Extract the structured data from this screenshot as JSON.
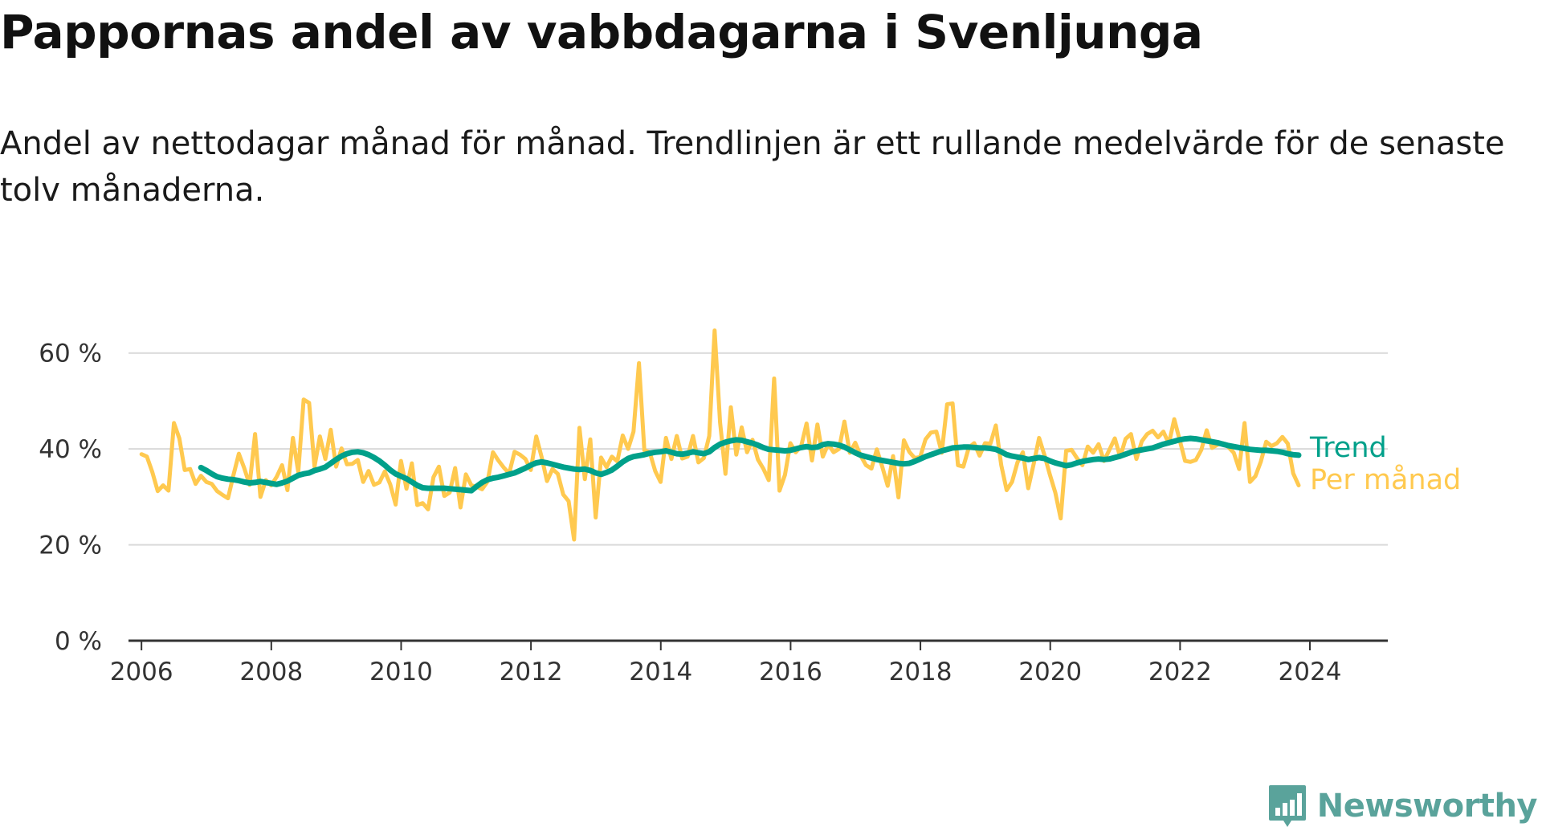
{
  "title": "Pappornas andel av vabbdagarna i Svenljunga",
  "subtitle": "Andel av nettodagar månad för månad. Trendlinjen är ett rullande medelvärde för de senaste tolv månaderna.",
  "logo": {
    "text": "Newsworthy",
    "icon": "bar-chart-speech-bubble-icon",
    "color": "#5aa39b"
  },
  "colors": {
    "trend": "#00a08a",
    "monthly": "#ffc94f",
    "grid": "#d9d9d9",
    "axis": "#333333"
  },
  "chart_data": {
    "type": "line",
    "title": "Pappornas andel av vabbdagarna i Svenljunga",
    "xlabel": "",
    "ylabel": "",
    "xlim": [
      2005.8,
      2025.2
    ],
    "ylim": [
      0,
      70
    ],
    "x_ticks": [
      2006,
      2008,
      2010,
      2012,
      2014,
      2016,
      2018,
      2020,
      2022,
      2024
    ],
    "x_tick_labels": [
      "2006",
      "2008",
      "2010",
      "2012",
      "2014",
      "2016",
      "2018",
      "2020",
      "2022",
      "2024"
    ],
    "y_ticks": [
      0,
      20,
      40,
      60
    ],
    "y_tick_labels": [
      "0 %",
      "20 %",
      "40 %",
      "60 %"
    ],
    "grid": true,
    "x_start": 2006.0,
    "x_step": 0.0833,
    "series": [
      {
        "name": "Trend",
        "start_index": 11,
        "values": [
          36.1,
          35.5,
          34.8,
          34.2,
          33.9,
          33.7,
          33.6,
          33.4,
          33.1,
          32.9,
          33.0,
          33.2,
          33.0,
          32.8,
          32.6,
          32.9,
          33.3,
          33.9,
          34.5,
          34.8,
          35.0,
          35.5,
          35.8,
          36.2,
          37.0,
          37.8,
          38.5,
          39.0,
          39.3,
          39.4,
          39.2,
          38.8,
          38.2,
          37.5,
          36.6,
          35.6,
          34.8,
          34.3,
          33.8,
          33.1,
          32.4,
          31.9,
          31.8,
          31.8,
          31.8,
          31.8,
          31.7,
          31.6,
          31.5,
          31.4,
          31.3,
          32.2,
          33.0,
          33.6,
          33.9,
          34.1,
          34.4,
          34.7,
          35.0,
          35.5,
          36.0,
          36.6,
          37.1,
          37.3,
          37.1,
          36.8,
          36.5,
          36.2,
          36.0,
          35.8,
          35.7,
          35.8,
          35.5,
          35.0,
          34.7,
          35.1,
          35.6,
          36.4,
          37.3,
          38.0,
          38.4,
          38.6,
          38.8,
          39.1,
          39.3,
          39.4,
          39.6,
          39.3,
          39.0,
          38.9,
          39.1,
          39.4,
          39.2,
          39.0,
          39.4,
          40.3,
          41.0,
          41.4,
          41.7,
          41.9,
          41.8,
          41.5,
          41.2,
          40.8,
          40.3,
          39.9,
          39.8,
          39.7,
          39.6,
          39.7,
          40.0,
          40.3,
          40.5,
          40.3,
          40.4,
          40.9,
          41.1,
          41.0,
          40.8,
          40.4,
          39.8,
          39.2,
          38.7,
          38.4,
          38.1,
          37.8,
          37.6,
          37.4,
          37.2,
          37.0,
          36.9,
          37.0,
          37.4,
          37.9,
          38.4,
          38.8,
          39.2,
          39.6,
          39.9,
          40.2,
          40.3,
          40.4,
          40.4,
          40.3,
          40.2,
          40.2,
          40.1,
          39.9,
          39.4,
          38.8,
          38.5,
          38.3,
          38.1,
          37.8,
          38.0,
          38.2,
          38.0,
          37.5,
          37.1,
          36.8,
          36.5,
          36.7,
          37.1,
          37.4,
          37.6,
          37.8,
          37.9,
          37.8,
          37.9,
          38.2,
          38.5,
          38.9,
          39.3,
          39.6,
          39.8,
          40.0,
          40.2,
          40.6,
          41.0,
          41.3,
          41.6,
          41.9,
          42.1,
          42.2,
          42.1,
          41.9,
          41.7,
          41.5,
          41.3,
          41.0,
          40.7,
          40.5,
          40.3,
          40.1,
          39.9,
          39.8,
          39.7,
          39.7,
          39.6,
          39.5,
          39.3,
          39.0,
          38.8,
          38.7
        ]
      },
      {
        "name": "Per månad",
        "start_index": 0,
        "values": [
          38.9,
          38.4,
          35.2,
          31.2,
          32.4,
          31.3,
          45.4,
          42.2,
          35.6,
          35.8,
          32.7,
          34.4,
          33.1,
          32.7,
          31.2,
          30.4,
          29.7,
          34.5,
          39.0,
          36.0,
          32.5,
          43.1,
          30.0,
          33.5,
          32.4,
          34.2,
          36.6,
          31.4,
          42.3,
          35.2,
          50.3,
          49.6,
          36.3,
          42.6,
          37.9,
          44.0,
          36.3,
          40.1,
          36.8,
          36.9,
          37.7,
          33.1,
          35.4,
          32.5,
          33.0,
          35.3,
          32.6,
          28.4,
          37.5,
          31.7,
          37.0,
          28.3,
          28.7,
          27.4,
          34.1,
          36.3,
          30.2,
          30.9,
          36.0,
          27.8,
          34.7,
          32.4,
          32.1,
          31.6,
          33.2,
          39.3,
          37.6,
          36.1,
          34.9,
          39.4,
          38.8,
          37.9,
          35.6,
          42.6,
          38.3,
          33.3,
          35.8,
          34.8,
          30.5,
          29.1,
          21.1,
          44.4,
          33.7,
          42.0,
          25.7,
          38.2,
          36.2,
          38.4,
          37.4,
          42.8,
          40.0,
          43.6,
          57.9,
          39.7,
          39.3,
          35.4,
          33.1,
          42.3,
          37.9,
          42.7,
          38.0,
          38.4,
          42.7,
          37.2,
          38.1,
          42.7,
          64.7,
          45.5,
          34.8,
          48.7,
          38.8,
          44.5,
          39.3,
          41.9,
          37.8,
          35.9,
          33.5,
          54.7,
          31.3,
          34.6,
          41.2,
          39.3,
          40.6,
          45.3,
          37.6,
          45.1,
          38.4,
          41.0,
          39.3,
          40.0,
          45.7,
          39.2,
          41.3,
          38.6,
          36.6,
          35.9,
          39.9,
          36.3,
          32.3,
          38.5,
          29.9,
          41.8,
          39.4,
          38.1,
          38.3,
          42.0,
          43.4,
          43.6,
          39.2,
          49.3,
          49.5,
          36.6,
          36.3,
          40.3,
          41.2,
          38.6,
          41.2,
          41.1,
          44.9,
          36.6,
          31.4,
          33.1,
          37.2,
          39.3,
          31.8,
          36.9,
          42.3,
          38.7,
          34.6,
          30.9,
          25.5,
          39.6,
          39.8,
          38.1,
          36.6,
          40.5,
          39.2,
          41.0,
          37.5,
          39.8,
          42.2,
          38.3,
          42.1,
          43.1,
          37.9,
          41.6,
          43.1,
          43.8,
          42.4,
          43.6,
          41.1,
          46.2,
          41.9,
          37.5,
          37.3,
          37.7,
          39.8,
          43.9,
          40.2,
          40.9,
          41.2,
          40.4,
          39.2,
          35.8,
          45.4,
          33.1,
          34.3,
          37.3,
          41.5,
          40.6,
          41.2,
          42.5,
          41.1,
          34.9,
          32.4
        ]
      }
    ],
    "legend": [
      {
        "label": "Trend",
        "color": "#00a08a"
      },
      {
        "label": "Per månad",
        "color": "#ffc94f"
      }
    ]
  }
}
